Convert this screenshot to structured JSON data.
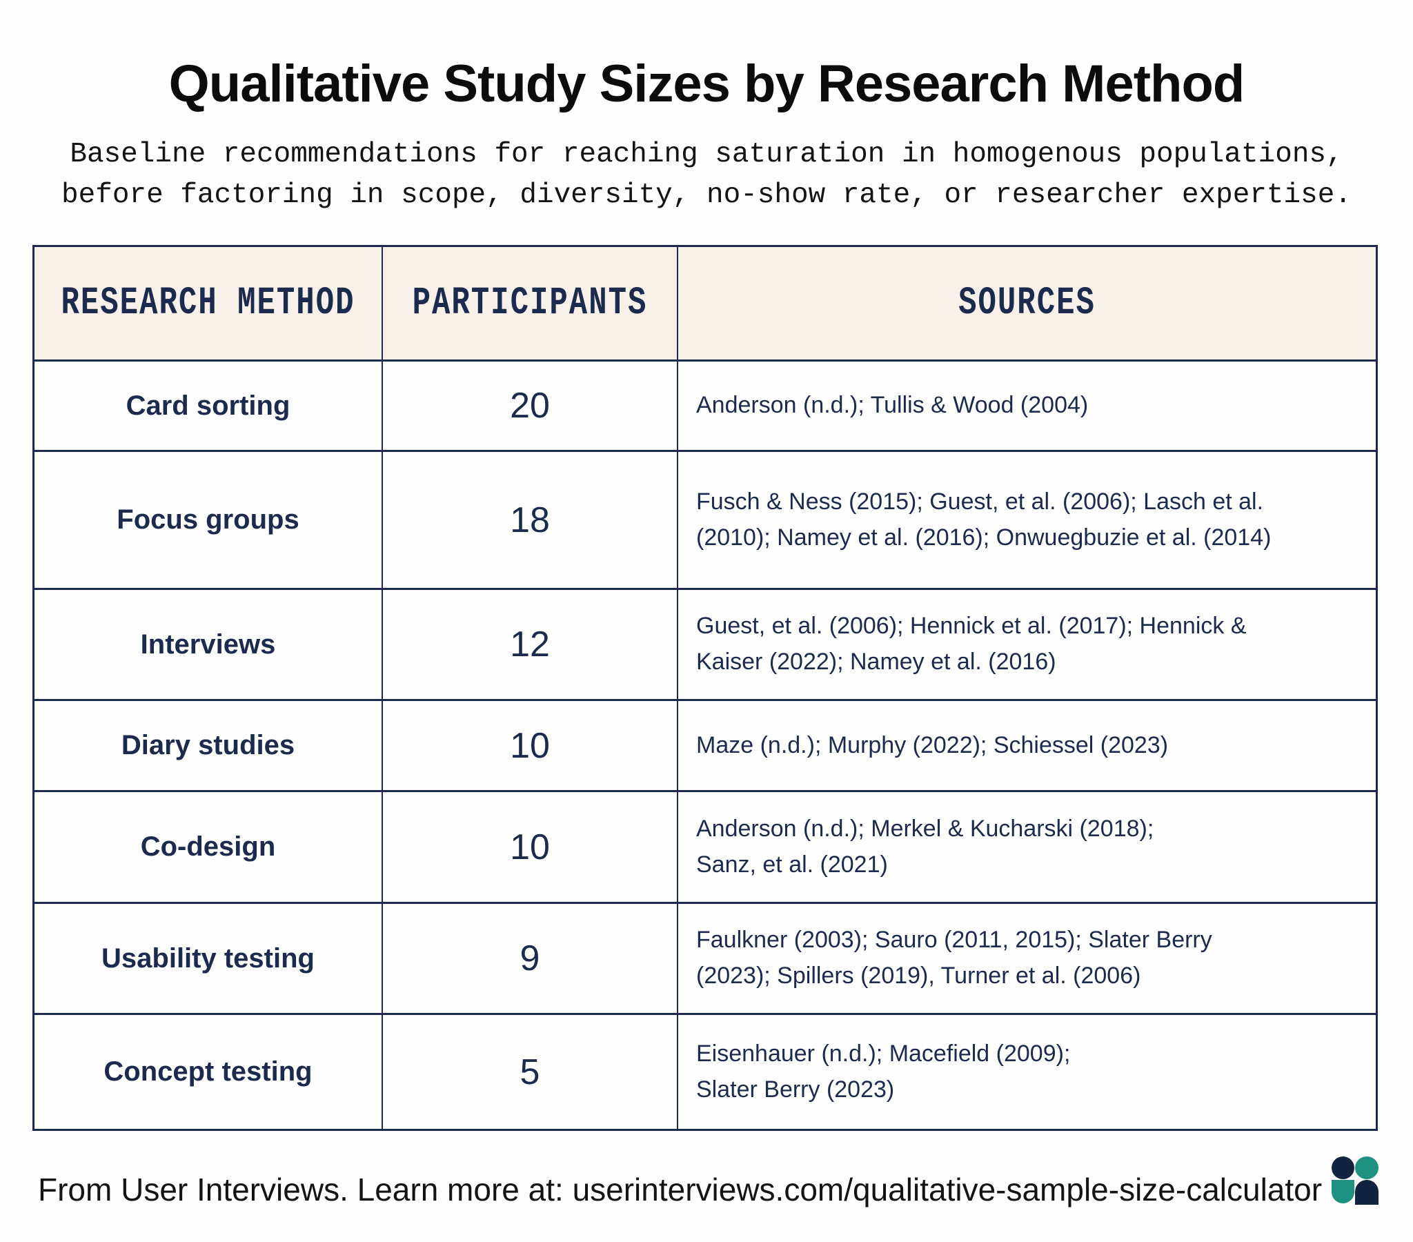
{
  "title": "Qualitative Study Sizes by Research Method",
  "subtitle": "Baseline recommendations for reaching saturation in homogenous populations,\nbefore factoring in scope, diversity, no-show rate, or researcher expertise.",
  "table": {
    "headers": [
      "RESEARCH METHOD",
      "PARTICIPANTS",
      "SOURCES"
    ],
    "rows": [
      {
        "method": "Card sorting",
        "participants": "20",
        "sources": "Anderson (n.d.); Tullis & Wood (2004)"
      },
      {
        "method": "Focus groups",
        "participants": "18",
        "sources": "Fusch & Ness (2015); Guest, et al. (2006); Lasch et al.\n(2010); Namey et al. (2016); Onwuegbuzie et al. (2014)"
      },
      {
        "method": "Interviews",
        "participants": "12",
        "sources": "Guest, et al. (2006); Hennick et al. (2017); Hennick &\nKaiser (2022); Namey et al. (2016)"
      },
      {
        "method": "Diary studies",
        "participants": "10",
        "sources": "Maze (n.d.); Murphy (2022); Schiessel (2023)"
      },
      {
        "method": "Co-design",
        "participants": "10",
        "sources": "Anderson (n.d.); Merkel & Kucharski (2018);\nSanz, et al. (2021)"
      },
      {
        "method": "Usability testing",
        "participants": "9",
        "sources": "Faulkner (2003); Sauro (2011, 2015); Slater Berry\n(2023); Spillers (2019), Turner et al. (2006)"
      },
      {
        "method": "Concept testing",
        "participants": "5",
        "sources": "Eisenhauer (n.d.); Macefield (2009);\nSlater Berry (2023)"
      }
    ]
  },
  "footer": {
    "text": "From User Interviews. Learn more at: userinterviews.com/qualitative-sample-size-calculator"
  },
  "logo": {
    "name": "User Interviews logo"
  },
  "colors": {
    "navy": "#1c2b4d",
    "ink": "#0c0c0c",
    "page-bg": "#fffdfd",
    "header-bg": "#f7f1ea",
    "logo-navy": "#12233f",
    "logo-teal": "#1f9180"
  }
}
